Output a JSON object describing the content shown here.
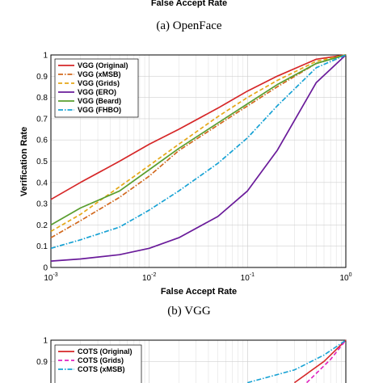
{
  "top_fragment": {
    "xlabel": "False Accept Rate",
    "caption": "(a) OpenFace"
  },
  "chart_data": [
    {
      "type": "line",
      "caption": "(b) VGG",
      "xlabel": "False Accept Rate",
      "ylabel": "Verification Rate",
      "xscale": "log",
      "xlim": [
        0.001,
        1
      ],
      "ylim": [
        0,
        1
      ],
      "grid": true,
      "legend_position": "top-left",
      "xticks": [
        {
          "value": 0.001,
          "base": "10",
          "exp": "-3"
        },
        {
          "value": 0.01,
          "base": "10",
          "exp": "-2"
        },
        {
          "value": 0.1,
          "base": "10",
          "exp": "-1"
        },
        {
          "value": 1,
          "base": "10",
          "exp": "0"
        }
      ],
      "yticks": [
        "0",
        "0.1",
        "0.2",
        "0.3",
        "0.4",
        "0.5",
        "0.6",
        "0.7",
        "0.8",
        "0.9",
        "1"
      ],
      "series": [
        {
          "name": "VGG (Original)",
          "color": "#d62728",
          "dash": "solid",
          "x": [
            0.001,
            0.002,
            0.005,
            0.01,
            0.02,
            0.05,
            0.1,
            0.2,
            0.5,
            1
          ],
          "y": [
            0.32,
            0.4,
            0.5,
            0.58,
            0.65,
            0.75,
            0.83,
            0.9,
            0.98,
            1.0
          ]
        },
        {
          "name": "VGG (xMSB)",
          "color": "#d2691e",
          "dash": "dashdot",
          "x": [
            0.001,
            0.002,
            0.005,
            0.01,
            0.02,
            0.05,
            0.1,
            0.2,
            0.5,
            1
          ],
          "y": [
            0.14,
            0.22,
            0.33,
            0.43,
            0.55,
            0.67,
            0.76,
            0.85,
            0.96,
            1.0
          ]
        },
        {
          "name": "VGG (Grids)",
          "color": "#e6a817",
          "dash": "dashed",
          "x": [
            0.001,
            0.002,
            0.005,
            0.01,
            0.02,
            0.05,
            0.1,
            0.2,
            0.5,
            1
          ],
          "y": [
            0.17,
            0.25,
            0.38,
            0.48,
            0.58,
            0.71,
            0.8,
            0.88,
            0.97,
            1.0
          ]
        },
        {
          "name": "VGG (ERO)",
          "color": "#6a1b9a",
          "dash": "solid",
          "x": [
            0.001,
            0.002,
            0.005,
            0.01,
            0.02,
            0.05,
            0.1,
            0.2,
            0.5,
            1
          ],
          "y": [
            0.03,
            0.04,
            0.06,
            0.09,
            0.14,
            0.24,
            0.36,
            0.55,
            0.87,
            1.0
          ]
        },
        {
          "name": "VGG (Beard)",
          "color": "#5a9e2f",
          "dash": "solid",
          "x": [
            0.001,
            0.002,
            0.005,
            0.01,
            0.02,
            0.05,
            0.1,
            0.2,
            0.5,
            1
          ],
          "y": [
            0.2,
            0.28,
            0.36,
            0.46,
            0.56,
            0.68,
            0.77,
            0.86,
            0.96,
            1.0
          ]
        },
        {
          "name": "VGG (FHBO)",
          "color": "#17a2d4",
          "dash": "dashdot",
          "x": [
            0.001,
            0.002,
            0.005,
            0.01,
            0.02,
            0.05,
            0.1,
            0.2,
            0.5,
            1
          ],
          "y": [
            0.09,
            0.13,
            0.19,
            0.27,
            0.36,
            0.49,
            0.61,
            0.76,
            0.94,
            1.0
          ]
        }
      ]
    },
    {
      "type": "line",
      "partial": true,
      "ylim": [
        0,
        1
      ],
      "yticks": [
        "1",
        "0.9"
      ],
      "legend_position": "top-left",
      "series": [
        {
          "name": "COTS (Original)",
          "color": "#d62728",
          "dash": "solid",
          "x": [
            0.3,
            0.6,
            1
          ],
          "y": [
            0.8,
            0.9,
            1.0
          ]
        },
        {
          "name": "COTS (Grids)",
          "color": "#e020c0",
          "dash": "dashed",
          "x": [
            0.4,
            0.7,
            1
          ],
          "y": [
            0.8,
            0.91,
            1.0
          ]
        },
        {
          "name": "COTS (xMSB)",
          "color": "#17a2d4",
          "dash": "dashdot",
          "x": [
            0.1,
            0.3,
            0.6,
            1
          ],
          "y": [
            0.8,
            0.86,
            0.93,
            1.0
          ]
        }
      ]
    }
  ]
}
